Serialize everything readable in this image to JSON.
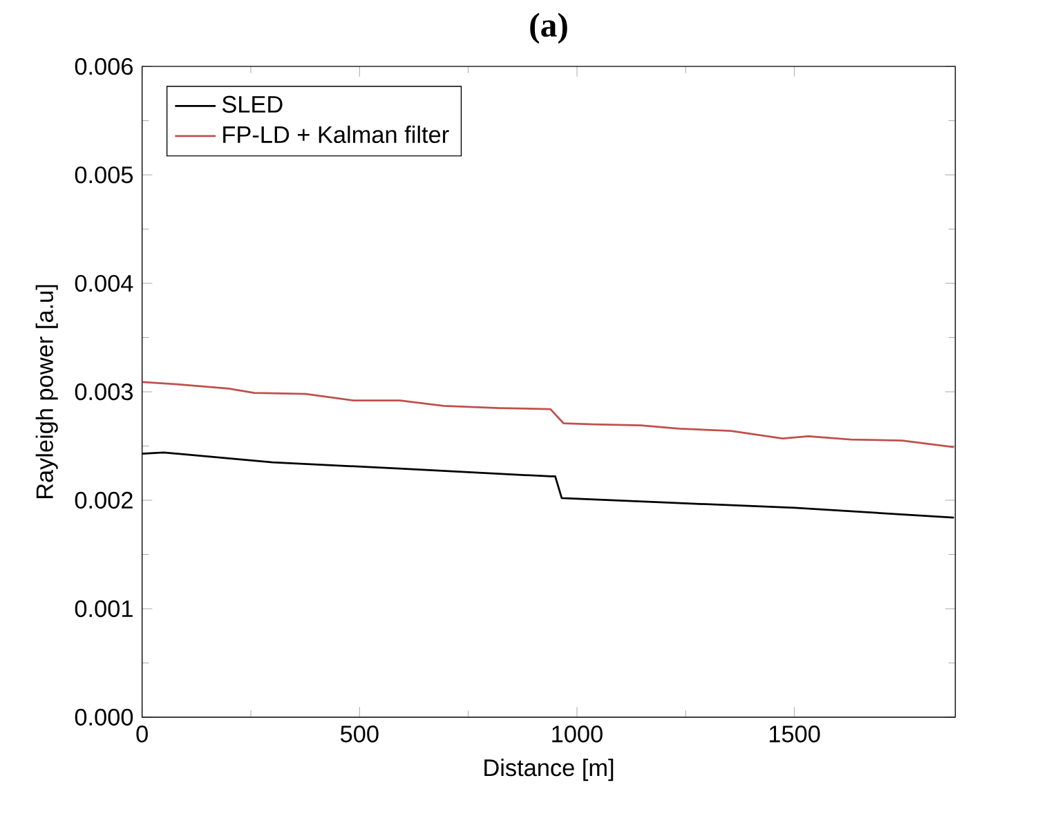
{
  "chart_data": {
    "type": "line",
    "title": "(a)",
    "xlabel": "Distance [m]",
    "ylabel": "Rayleigh power [a.u]",
    "xlim": [
      0,
      1870
    ],
    "ylim": [
      0,
      0.006
    ],
    "xticks": [
      0,
      500,
      1000,
      1500
    ],
    "yticks": [
      {
        "value": 0,
        "label": "0.000"
      },
      {
        "value": 0.001,
        "label": "0.001"
      },
      {
        "value": 0.002,
        "label": "0.002"
      },
      {
        "value": 0.003,
        "label": "0.003"
      },
      {
        "value": 0.004,
        "label": "0.004"
      },
      {
        "value": 0.005,
        "label": "0.005"
      },
      {
        "value": 0.006,
        "label": "0.006"
      }
    ],
    "legend": "top left",
    "grid": false,
    "marker": "none",
    "line_style": "solid",
    "series": [
      {
        "name": "SLED",
        "color": "#000000",
        "x": [
          0,
          50,
          300,
          600,
          940,
          950,
          965,
          1200,
          1500,
          1867
        ],
        "values": [
          0.00243,
          0.00244,
          0.00235,
          0.00229,
          0.00222,
          0.00222,
          0.00202,
          0.00198,
          0.00193,
          0.00184
        ]
      },
      {
        "name": "FP-LD + Kalman filter",
        "color": "#c0504d",
        "x": [
          0,
          80,
          199,
          258,
          376,
          486,
          593,
          693,
          821,
          939,
          969,
          1037,
          1147,
          1235,
          1354,
          1473,
          1532,
          1630,
          1748,
          1867
        ],
        "values": [
          0.00309,
          0.00307,
          0.00303,
          0.00299,
          0.00298,
          0.00292,
          0.00292,
          0.00287,
          0.00285,
          0.00284,
          0.00271,
          0.0027,
          0.00269,
          0.00266,
          0.00264,
          0.00257,
          0.00259,
          0.00256,
          0.00255,
          0.00249
        ]
      }
    ]
  }
}
